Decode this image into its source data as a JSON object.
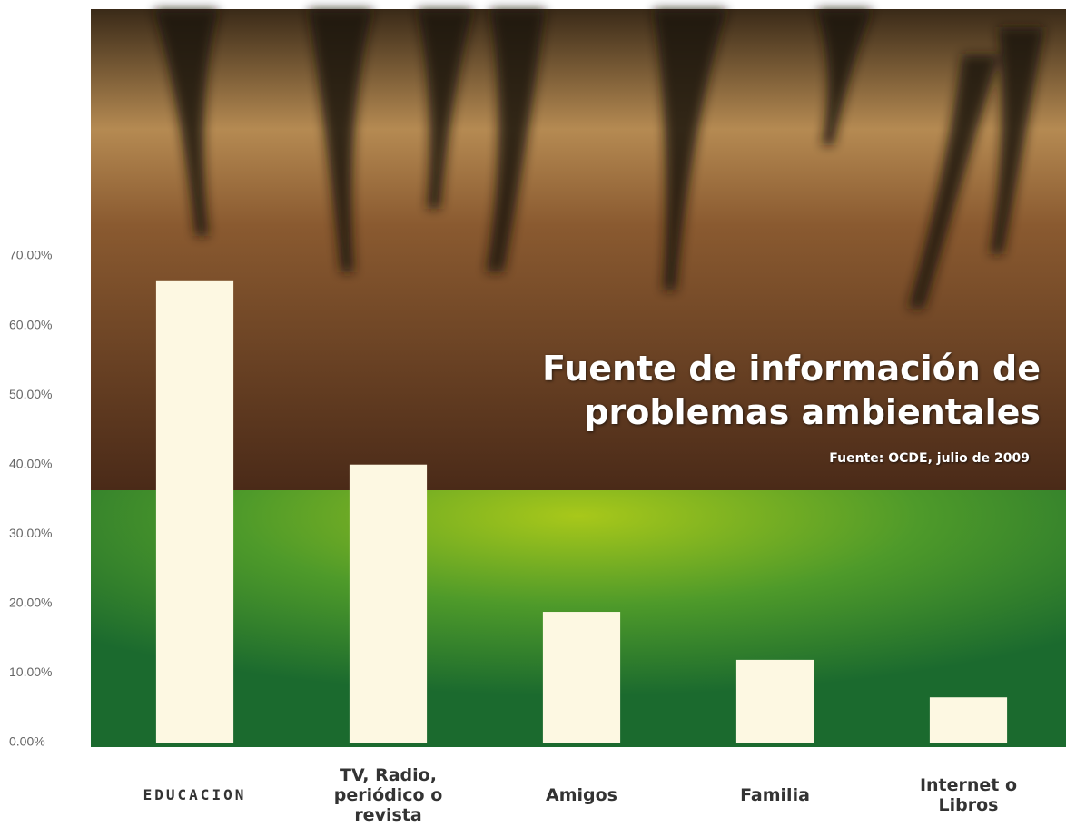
{
  "chart_data": {
    "type": "bar",
    "title": "Fuente de información de problemas ambientales",
    "subtitle": "Fuente: OCDE, julio de 2009",
    "categories": [
      "EDUCACION",
      "TV, Radio, periódico o revista",
      "Amigos",
      "Familia",
      "Internet o Libros"
    ],
    "values": [
      66.5,
      40,
      18.8,
      11.9,
      6.5
    ],
    "color": "#fdf8e2",
    "ylim": [
      0,
      70
    ],
    "yticks": [
      {
        "value": 0,
        "label": "0.00%"
      },
      {
        "value": 10,
        "label": "10.00%"
      },
      {
        "value": 20,
        "label": "20.00%"
      },
      {
        "value": 30,
        "label": "30.00%"
      },
      {
        "value": 40,
        "label": "40.00%"
      },
      {
        "value": 50,
        "label": "50.00%"
      },
      {
        "value": 60,
        "label": "60.00%"
      },
      {
        "value": 70,
        "label": "70.00%"
      }
    ]
  }
}
